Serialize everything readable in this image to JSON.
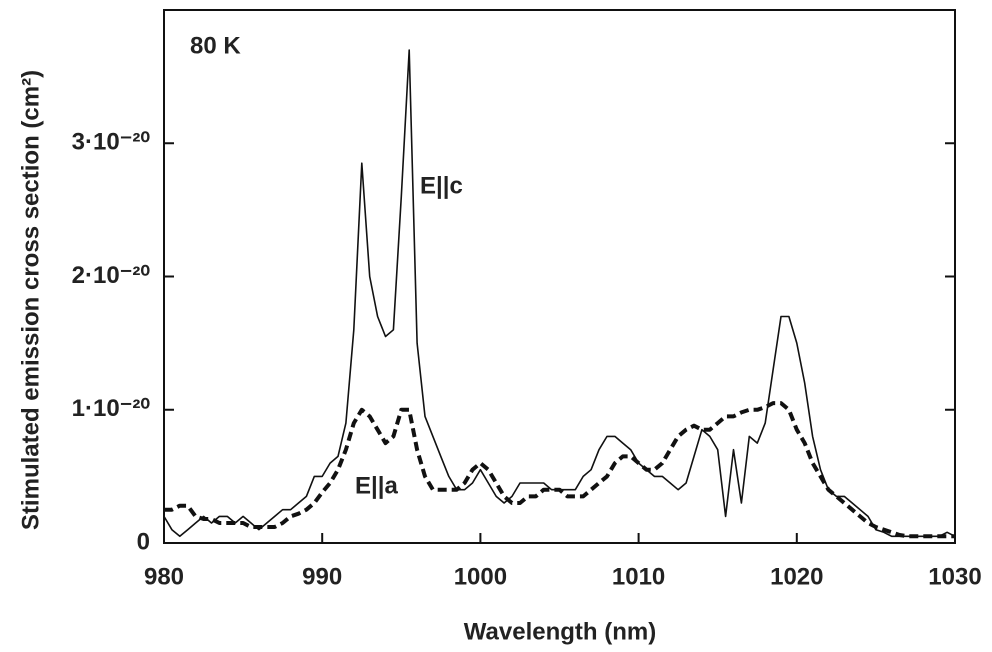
{
  "chart_data": {
    "type": "line",
    "x_label": "Wavelength (nm)",
    "y_label": "Stimulated emission cross section  (cm²)",
    "annotations": [
      "80 K",
      "E||c",
      "E||a"
    ],
    "xlim": [
      980,
      1030
    ],
    "xticks": [
      980,
      990,
      1000,
      1010,
      1020,
      1030
    ],
    "ylim": [
      0,
      4e-20
    ],
    "yticks": [
      0,
      {
        "value": 1e-20,
        "label": "1·10⁻²⁰"
      },
      {
        "value": 2e-20,
        "label": "2·10⁻²⁰"
      },
      {
        "value": 3e-20,
        "label": "3·10⁻²⁰"
      }
    ],
    "x": [
      980,
      980.5,
      981,
      981.5,
      982,
      982.5,
      983,
      983.5,
      984,
      984.5,
      985,
      985.5,
      986,
      986.5,
      987,
      987.5,
      988,
      988.5,
      989,
      989.5,
      990,
      990.5,
      991,
      991.5,
      992,
      992.5,
      993,
      993.5,
      994,
      994.5,
      995,
      995.5,
      996,
      996.5,
      997,
      997.5,
      998,
      998.5,
      999,
      999.5,
      1000,
      1000.5,
      1001,
      1001.5,
      1002,
      1002.5,
      1003,
      1003.5,
      1004,
      1004.5,
      1005,
      1005.5,
      1006,
      1006.5,
      1007,
      1007.5,
      1008,
      1008.5,
      1009,
      1009.5,
      1010,
      1010.5,
      1011,
      1011.5,
      1012,
      1012.5,
      1013,
      1013.5,
      1014,
      1014.5,
      1015,
      1015.5,
      1016,
      1016.5,
      1017,
      1017.5,
      1018,
      1018.5,
      1019,
      1019.5,
      1020,
      1020.5,
      1021,
      1021.5,
      1022,
      1022.5,
      1023,
      1023.5,
      1024,
      1024.5,
      1025,
      1025.5,
      1026,
      1026.5,
      1027,
      1027.5,
      1028,
      1028.5,
      1029,
      1029.5,
      1030
    ],
    "series": [
      {
        "color": "#111111",
        "dash": false,
        "values": [
          2e-21,
          1e-21,
          5e-22,
          1e-21,
          1.5e-21,
          2e-21,
          1.5e-21,
          2e-21,
          2e-21,
          1.5e-21,
          2e-21,
          1.5e-21,
          1e-21,
          1.5e-21,
          2e-21,
          2.5e-21,
          2.5e-21,
          3e-21,
          3.5e-21,
          5e-21,
          5e-21,
          6e-21,
          6.5e-21,
          9e-21,
          1.6e-20,
          2.85e-20,
          2e-20,
          1.7e-20,
          1.55e-20,
          1.6e-20,
          2.6e-20,
          3.7e-20,
          1.5e-20,
          9.5e-21,
          8e-21,
          6.5e-21,
          5e-21,
          4e-21,
          4e-21,
          4.5e-21,
          5.5e-21,
          4.5e-21,
          3.5e-21,
          3e-21,
          3.5e-21,
          4.5e-21,
          4.5e-21,
          4.5e-21,
          4.5e-21,
          4e-21,
          4e-21,
          4e-21,
          4e-21,
          5e-21,
          5.5e-21,
          7e-21,
          8e-21,
          8e-21,
          7.5e-21,
          7e-21,
          6e-21,
          5.5e-21,
          5e-21,
          5e-21,
          4.5e-21,
          4e-21,
          4.5e-21,
          6.5e-21,
          8.5e-21,
          8e-21,
          7e-21,
          2e-21,
          7e-21,
          3e-21,
          8e-21,
          7.5e-21,
          9e-21,
          1.3e-20,
          1.7e-20,
          1.7e-20,
          1.5e-20,
          1.2e-20,
          8e-21,
          5.5e-21,
          4e-21,
          3.5e-21,
          3.5e-21,
          3e-21,
          2.5e-21,
          2e-21,
          1e-21,
          8e-22,
          5e-22,
          5e-22,
          5e-22,
          5e-22,
          5e-22,
          5e-22,
          5e-22,
          8e-22,
          5e-22
        ]
      },
      {
        "color": "#111111",
        "dash": true,
        "values": [
          2.5e-21,
          2.5e-21,
          2.8e-21,
          2.8e-21,
          2e-21,
          1.8e-21,
          1.8e-21,
          1.5e-21,
          1.5e-21,
          1.5e-21,
          1.5e-21,
          1.2e-21,
          1.2e-21,
          1.2e-21,
          1.2e-21,
          1.5e-21,
          2e-21,
          2.2e-21,
          2.5e-21,
          3e-21,
          3.8e-21,
          4.5e-21,
          5.5e-21,
          7e-21,
          9e-21,
          1e-20,
          9.5e-21,
          8.5e-21,
          7.5e-21,
          8e-21,
          1e-20,
          1e-20,
          7e-21,
          5e-21,
          4e-21,
          4e-21,
          4e-21,
          4e-21,
          4.5e-21,
          5.5e-21,
          6e-21,
          5.5e-21,
          4.5e-21,
          3.5e-21,
          3e-21,
          3e-21,
          3.5e-21,
          3.5e-21,
          4e-21,
          4e-21,
          4e-21,
          3.5e-21,
          3.5e-21,
          3.5e-21,
          4e-21,
          4.5e-21,
          5e-21,
          6e-21,
          6.5e-21,
          6.5e-21,
          6e-21,
          5.5e-21,
          5.5e-21,
          6e-21,
          7e-21,
          8e-21,
          8.5e-21,
          8.8e-21,
          8.5e-21,
          8.5e-21,
          9e-21,
          9.5e-21,
          9.5e-21,
          9.8e-21,
          1e-20,
          1e-20,
          1.02e-20,
          1.05e-20,
          1.05e-20,
          1e-20,
          8.5e-21,
          7.5e-21,
          6e-21,
          5e-21,
          4e-21,
          3.5e-21,
          3e-21,
          2.5e-21,
          2e-21,
          1.5e-21,
          1.2e-21,
          1e-21,
          8e-22,
          6e-22,
          5e-22,
          5e-22,
          5e-22,
          5e-22,
          5e-22,
          5e-22,
          5e-22
        ]
      }
    ]
  }
}
